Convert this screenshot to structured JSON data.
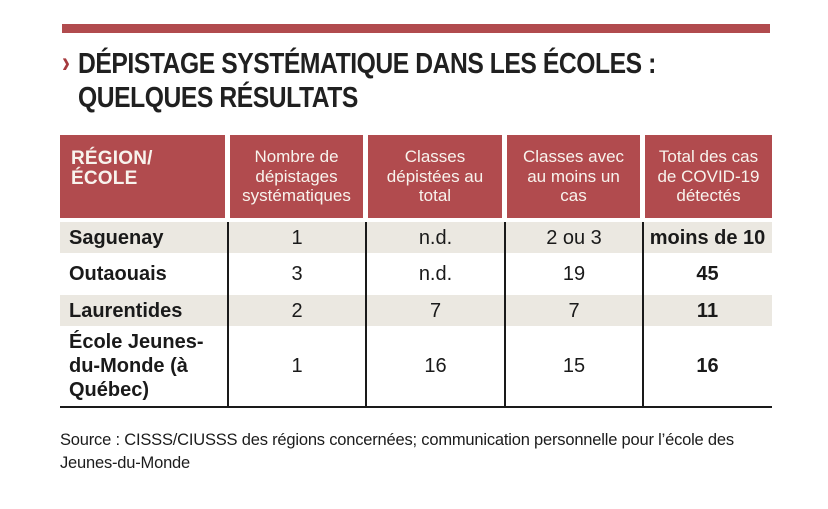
{
  "page": {
    "chevron": "›",
    "title_line1": "DÉPISTAGE SYSTÉMATIQUE DANS LES ÉCOLES :",
    "title_line2": "QUELQUES RÉSULTATS",
    "source": "Source : CISSS/CIUSSS des régions concernées; communication personnelle pour l’école des Jeunes-du-Monde"
  },
  "colors": {
    "accent_red": "#b14b4e",
    "row_beige": "#ebe8e1",
    "rule_black": "#1a1a1a",
    "header_text": "#f8f3ed"
  },
  "chart_data": {
    "type": "table",
    "title": "DÉPISTAGE SYSTÉMATIQUE DANS LES ÉCOLES : QUELQUES RÉSULTATS",
    "columns": [
      "RÉGION/ÉCOLE",
      "Nombre de dépistages systématiques",
      "Classes dépistées au total",
      "Classes avec au moins un cas",
      "Total des cas de COVID-19 détectés"
    ],
    "rows": [
      [
        "Saguenay",
        "1",
        "n.d.",
        "2 ou 3",
        "moins de 10"
      ],
      [
        "Outaouais",
        "3",
        "n.d.",
        "19",
        "45"
      ],
      [
        "Laurentides",
        "2",
        "7",
        "7",
        "11"
      ],
      [
        "École Jeunes-du-Monde (à Québec)",
        "1",
        "16",
        "15",
        "16"
      ]
    ],
    "source": "Source : CISSS/CIUSSS des régions concernées; communication personnelle pour l’école des Jeunes-du-Monde"
  }
}
